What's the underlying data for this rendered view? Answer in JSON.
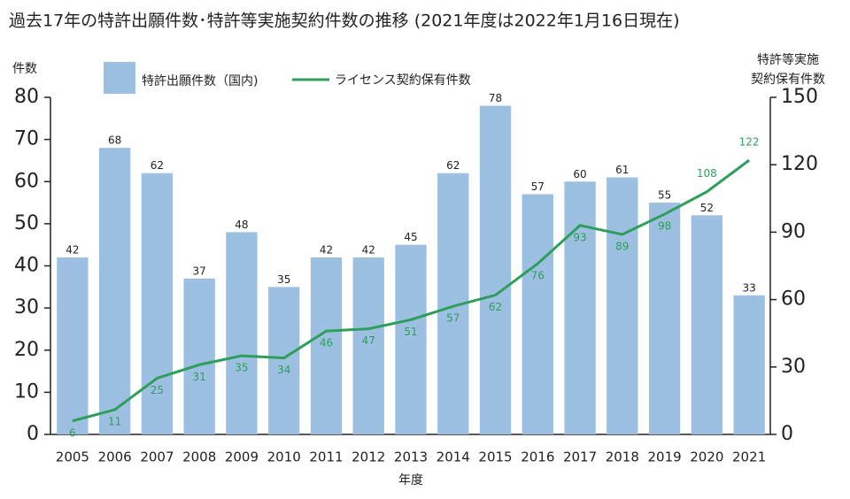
{
  "chart_data": {
    "type": "bar",
    "title": "過去17年の特許出願件数･特許等実施契約件数の推移 (2021年度は2022年1月16日現在)",
    "y_label": "件数",
    "y2_label": [
      "特許等実施",
      "契約保有件数"
    ],
    "x_label": "年度",
    "categories": [
      "2005",
      "2006",
      "2007",
      "2008",
      "2009",
      "2010",
      "2011",
      "2012",
      "2013",
      "2014",
      "2015",
      "2016",
      "2017",
      "2018",
      "2019",
      "2020",
      "2021"
    ],
    "series": [
      {
        "name": "特許出願件数（国内)",
        "type": "bar",
        "color": "#9dbfe1",
        "values": [
          42,
          68,
          62,
          37,
          48,
          35,
          42,
          42,
          45,
          62,
          78,
          57,
          60,
          61,
          55,
          52,
          33
        ]
      },
      {
        "name": "ライセンス契約保有件数",
        "type": "line",
        "axis": "y2",
        "color": "#2e9e5b",
        "values": [
          6,
          11,
          25,
          31,
          35,
          34,
          46,
          47,
          51,
          57,
          62,
          76,
          93,
          89,
          98,
          108,
          122
        ]
      }
    ],
    "ylim": [
      0,
      80
    ],
    "yticks": [
      0,
      10,
      20,
      30,
      40,
      50,
      60,
      70,
      80
    ],
    "y2lim": [
      0,
      150
    ],
    "y2ticks": [
      0,
      30,
      60,
      90,
      120,
      150
    ],
    "grid": false
  }
}
